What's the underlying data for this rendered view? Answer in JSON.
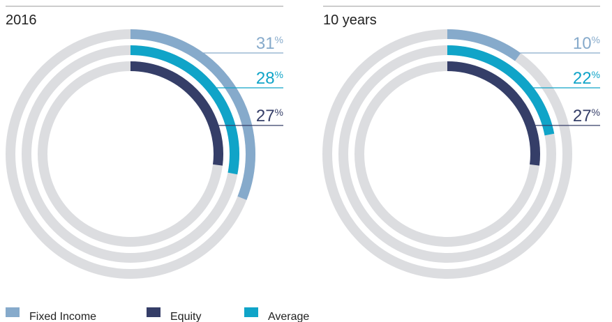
{
  "chart_data": [
    {
      "type": "radial-bar",
      "title": "2016",
      "categories": [
        "Fixed Income",
        "Equity",
        "Average"
      ],
      "values": [
        31,
        27,
        28
      ],
      "value_labels": [
        "31%",
        "27%",
        "28%"
      ],
      "colors": [
        "#86aacb",
        "#353e68",
        "#10a4c8"
      ],
      "rlim": [
        0,
        100
      ]
    },
    {
      "type": "radial-bar",
      "title": "10 years",
      "categories": [
        "Fixed Income",
        "Equity",
        "Average"
      ],
      "values": [
        10,
        27,
        22
      ],
      "value_labels": [
        "10%",
        "27%",
        "22%"
      ],
      "colors": [
        "#86aacb",
        "#353e68",
        "#10a4c8"
      ],
      "rlim": [
        0,
        100
      ]
    }
  ]
}
